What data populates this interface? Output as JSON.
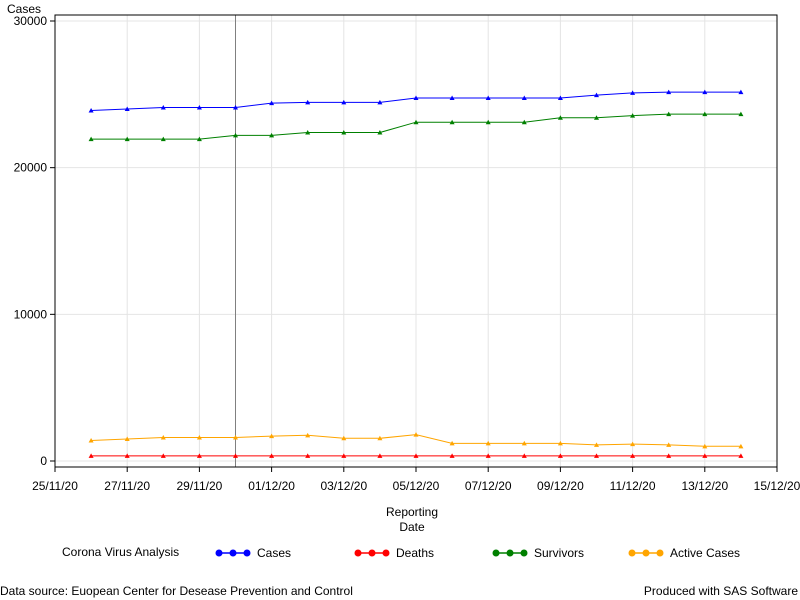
{
  "chart_data": {
    "type": "line",
    "ylabel": "Cases",
    "xlabel_lines": [
      "Reporting",
      "Date"
    ],
    "ylim": [
      0,
      30000
    ],
    "y_ticks": [
      0,
      10000,
      20000,
      30000
    ],
    "xlim": [
      "2020-11-25",
      "2020-12-15"
    ],
    "x_ticks": [
      "25/11/20",
      "27/11/20",
      "29/11/20",
      "01/12/20",
      "03/12/20",
      "05/12/20",
      "07/12/20",
      "09/12/20",
      "11/12/20",
      "13/12/20",
      "15/12/20"
    ],
    "x_tick_dates": [
      "2020-11-25",
      "2020-11-27",
      "2020-11-29",
      "2020-12-01",
      "2020-12-03",
      "2020-12-05",
      "2020-12-07",
      "2020-12-09",
      "2020-12-11",
      "2020-12-13",
      "2020-12-15"
    ],
    "reference_line_date": "2020-11-30",
    "grid": true,
    "legend_title": "Corona Virus Analysis",
    "legend_position": "bottom",
    "x": [
      "2020-11-26",
      "2020-11-27",
      "2020-11-28",
      "2020-11-29",
      "2020-11-30",
      "2020-12-01",
      "2020-12-02",
      "2020-12-03",
      "2020-12-04",
      "2020-12-05",
      "2020-12-06",
      "2020-12-07",
      "2020-12-08",
      "2020-12-09",
      "2020-12-10",
      "2020-12-11",
      "2020-12-12",
      "2020-12-13",
      "2020-12-14"
    ],
    "series": [
      {
        "name": "Cases",
        "color": "#0000ff",
        "values": [
          23900,
          24000,
          24100,
          24100,
          24100,
          24400,
          24450,
          24450,
          24450,
          24750,
          24750,
          24750,
          24750,
          24750,
          24950,
          25100,
          25150,
          25150,
          25150
        ]
      },
      {
        "name": "Deaths",
        "color": "#ff0000",
        "values": [
          350,
          350,
          350,
          350,
          350,
          350,
          350,
          350,
          350,
          350,
          350,
          350,
          350,
          350,
          350,
          350,
          350,
          350,
          350
        ]
      },
      {
        "name": "Survivors",
        "color": "#008000",
        "values": [
          21950,
          21950,
          21950,
          21950,
          22200,
          22200,
          22400,
          22400,
          22400,
          23100,
          23100,
          23100,
          23100,
          23400,
          23400,
          23550,
          23650,
          23650,
          23650
        ]
      },
      {
        "name": "Active Cases",
        "color": "#ffa500",
        "values": [
          1400,
          1500,
          1600,
          1600,
          1600,
          1700,
          1750,
          1550,
          1550,
          1800,
          1200,
          1200,
          1200,
          1200,
          1100,
          1150,
          1100,
          1000,
          1000
        ]
      }
    ]
  },
  "footer": {
    "source": "Data source: Euopean Center for Desease Prevention and Control",
    "produced": "Produced with SAS Software"
  }
}
